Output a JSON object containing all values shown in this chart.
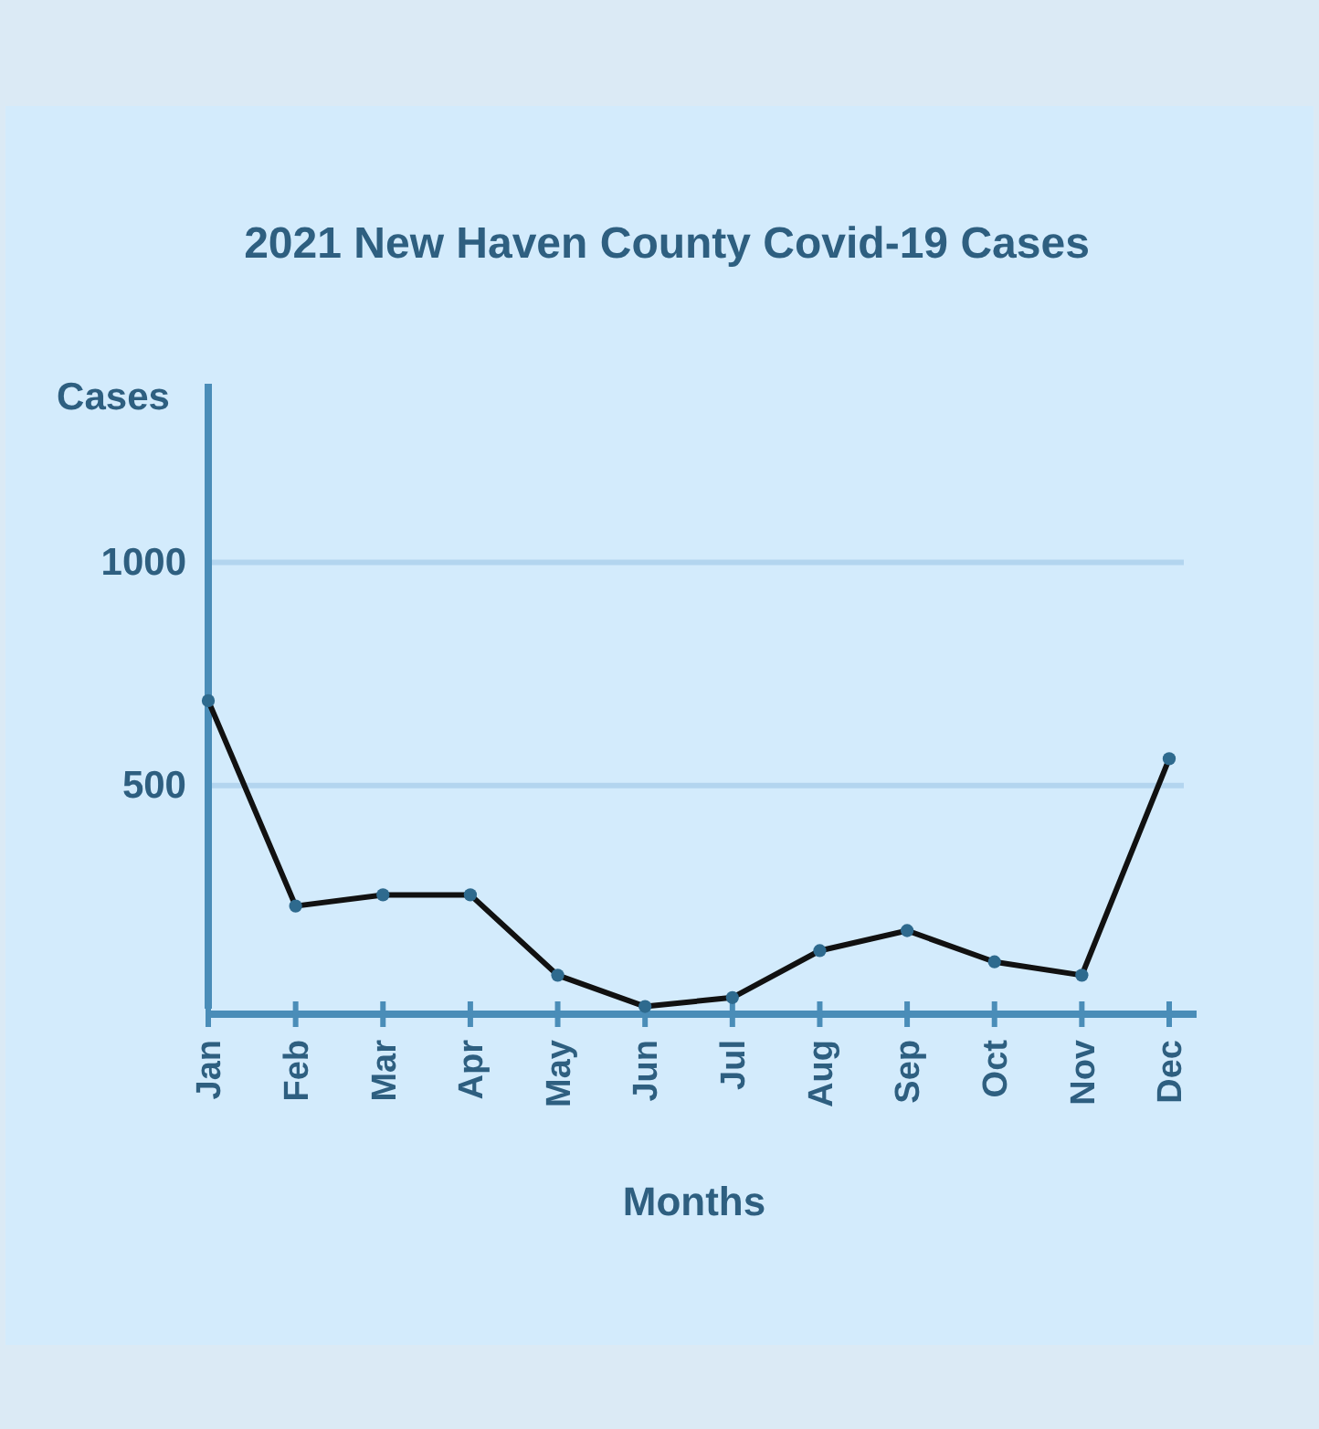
{
  "chart_data": {
    "type": "line",
    "title": "2021 New Haven County Covid-19 Cases",
    "xlabel": "Months",
    "ylabel": "Cases",
    "categories": [
      "Jan",
      "Feb",
      "Mar",
      "Apr",
      "May",
      "Jun",
      "Jul",
      "Aug",
      "Sep",
      "Oct",
      "Nov",
      "Dec"
    ],
    "series": [
      {
        "color": "#111111",
        "values": [
          690,
          230,
          255,
          255,
          75,
          5,
          25,
          130,
          175,
          105,
          75,
          560
        ]
      }
    ],
    "ylim": [
      0,
      1400
    ],
    "yticks": [
      500,
      1000
    ],
    "grid": "y",
    "marker": "circle",
    "line_style": "solid"
  }
}
